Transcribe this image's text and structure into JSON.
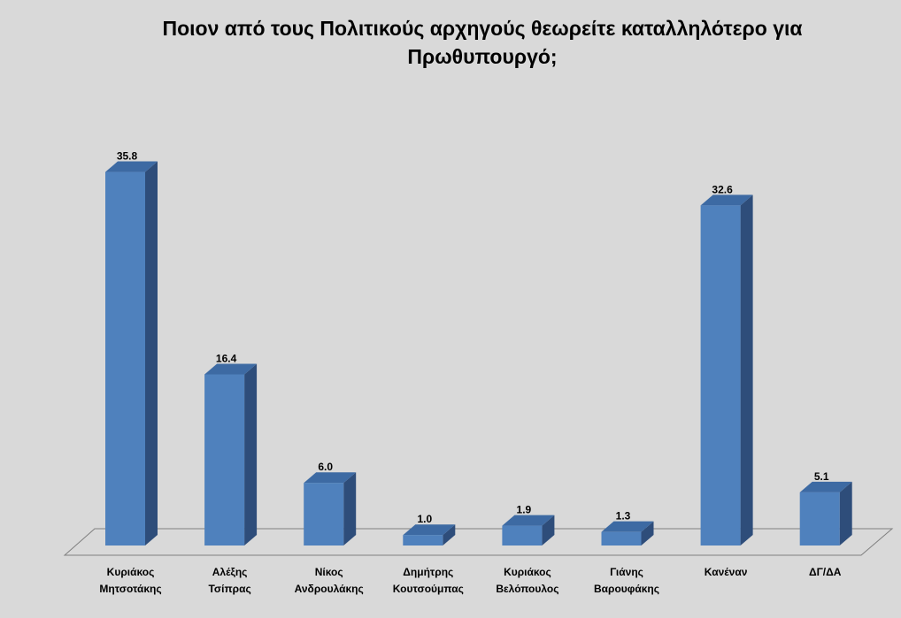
{
  "chart_data": {
    "type": "bar",
    "title": {
      "line1": "Ποιον από τους Πολιτικούς αρχηγούς θεωρείτε καταλληλότερο για",
      "line2": "Πρωθυπουργό;"
    },
    "categories": [
      [
        "Κυριάκος",
        "Μητσοτάκης"
      ],
      [
        "Αλέξης",
        "Τσίπρας"
      ],
      [
        "Νίκος",
        "Ανδρουλάκης"
      ],
      [
        "Δημήτρης",
        "Κουτσούμπας"
      ],
      [
        "Κυριάκος",
        "Βελόπουλος"
      ],
      [
        "Γιάνης",
        "Βαρουφάκης"
      ],
      [
        "Κανέναν"
      ],
      [
        "ΔΓ/ΔΑ"
      ]
    ],
    "values": [
      35.8,
      16.4,
      6.0,
      1.0,
      1.9,
      1.3,
      32.6,
      5.1
    ],
    "value_labels": [
      "35.8",
      "16.4",
      "6.0",
      "1.0",
      "1.9",
      "1.3",
      "32.6",
      "5.1"
    ],
    "ylim": [
      0,
      40
    ],
    "grid": false,
    "legend": "none",
    "bar_style": "3d",
    "colors": {
      "bar_front": "#4f81bd",
      "bar_side": "#2e4d7a",
      "bar_top": "#3d6aa3",
      "floor": "#d9d9d9",
      "axis_line": "#7f7f7f",
      "text": "#000000"
    }
  }
}
